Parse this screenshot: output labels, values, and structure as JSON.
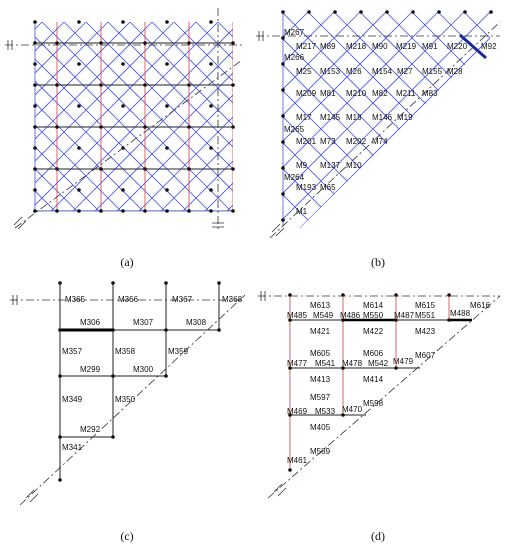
{
  "panels": [
    {
      "caption": "(a)"
    },
    {
      "caption": "(b)",
      "members": [
        "M267",
        "M217",
        "M89",
        "M218",
        "M90",
        "M219",
        "M91",
        "M220",
        "M92",
        "M266",
        "M25",
        "M153",
        "M26",
        "M154",
        "M27",
        "M155",
        "M28",
        "M209",
        "M81",
        "M210",
        "M82",
        "M211",
        "M83",
        "M17",
        "M145",
        "M18",
        "M146",
        "M19",
        "M265",
        "M201",
        "M73",
        "M202",
        "M74",
        "M9",
        "M137",
        "M10",
        "M264",
        "M193",
        "M65",
        "M1"
      ]
    },
    {
      "caption": "(c)",
      "members": [
        "M365",
        "M366",
        "M367",
        "M368",
        "M306",
        "M307",
        "M308",
        "M357",
        "M358",
        "M359",
        "M299",
        "M300",
        "M349",
        "M350",
        "M292",
        "M341"
      ]
    },
    {
      "caption": "(d)",
      "members": [
        "M613",
        "M614",
        "M615",
        "M616",
        "M485",
        "M549",
        "M486",
        "M550",
        "M487",
        "M551",
        "M488",
        "M421",
        "M422",
        "M423",
        "M605",
        "M606",
        "M607",
        "M477",
        "M541",
        "M478",
        "M542",
        "M479",
        "M413",
        "M414",
        "M597",
        "M598",
        "M469",
        "M533",
        "M470",
        "M405",
        "M589",
        "M461"
      ]
    }
  ]
}
